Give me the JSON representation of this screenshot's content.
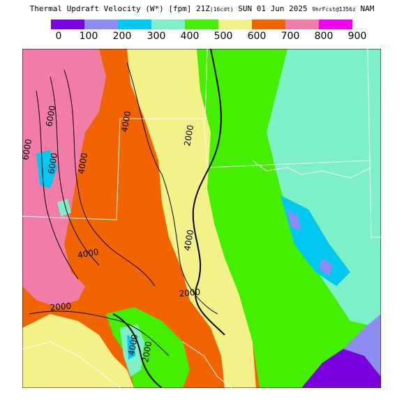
{
  "header": {
    "title_main": "Thermal Updraft Velocity (W*) [fpm] 21Z",
    "title_local": "(16cdt)",
    "title_date": " SUN 01 Jun 2025 ",
    "title_fcst": "9hrFcst@1356z",
    "title_model": " NAM"
  },
  "legend": {
    "colors": [
      "#7a00e0",
      "#8c8cf2",
      "#00c8f0",
      "#7ef0c8",
      "#44f000",
      "#f2f288",
      "#f26400",
      "#f27ca8",
      "#f000f0"
    ],
    "ticks": [
      "0",
      "100",
      "200",
      "300",
      "400",
      "500",
      "600",
      "700",
      "800",
      "900"
    ]
  },
  "map": {
    "contour_labels": [
      "6000",
      "6000",
      "6000",
      "4000",
      "4000",
      "4000",
      "4000",
      "2000",
      "2000",
      "2000",
      "4000",
      "2000"
    ]
  }
}
